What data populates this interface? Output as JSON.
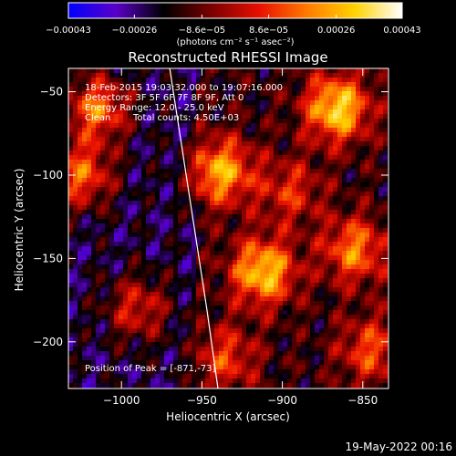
{
  "chart_data": {
    "type": "heatmap",
    "title": "Reconstructed RHESSI Image",
    "xlabel": "Heliocentric X (arcsec)",
    "ylabel": "Heliocentric Y (arcsec)",
    "xlim": [
      -1033,
      -834
    ],
    "ylim": [
      -228,
      -36
    ],
    "x_ticks": [
      -1000,
      -950,
      -900,
      -850
    ],
    "x_tick_labels": [
      "−1000",
      "−950",
      "−900",
      "−850"
    ],
    "y_ticks": [
      -50,
      -100,
      -150,
      -200
    ],
    "y_tick_labels": [
      "−50",
      "−100",
      "−150",
      "−200"
    ],
    "colorbar": {
      "range": [
        -0.00043,
        0.00043
      ],
      "tick_values": [
        -0.00043,
        -0.00026,
        -8.6e-05,
        8.6e-05,
        0.00026,
        0.00043
      ],
      "tick_labels": [
        "−0.00043",
        "−0.00026",
        "−8.6e−05",
        "8.6e−05",
        "0.00026",
        "0.00043"
      ],
      "units": "(photons cm⁻² s⁻¹ asec⁻²)",
      "colors": [
        "#0000ff",
        "#5a00c8",
        "#000000",
        "#7a0000",
        "#e81000",
        "#ff7a00",
        "#ffd200",
        "#ffffff"
      ]
    },
    "annotations": {
      "time": "18-Feb-2015 19:03:32.000 to 19:07:16.000",
      "detectors": "Detectors: 3F 5F 6F 7F 8F 9F, Att 0",
      "energy": "Energy Range: 12.0 - 25.0 keV",
      "method": "Clean",
      "counts": "Total counts: 4.50E+03",
      "peak": "Position of Peak = [-871,-73]"
    },
    "peak_position": [
      -871,
      -73
    ],
    "limb_points": [
      [
        -970,
        -36
      ],
      [
        -963,
        -80
      ],
      [
        -955,
        -130
      ],
      [
        -947,
        -180
      ],
      [
        -940,
        -228
      ]
    ],
    "hotspots": [
      {
        "x": -866,
        "y": -60,
        "value": 1.0
      },
      {
        "x": -912,
        "y": -158,
        "value": 0.95
      },
      {
        "x": -938,
        "y": -98,
        "value": 0.85
      },
      {
        "x": -1015,
        "y": -60,
        "value": 0.8
      },
      {
        "x": -1025,
        "y": -100,
        "value": 0.75
      },
      {
        "x": -855,
        "y": -145,
        "value": 0.7
      },
      {
        "x": -990,
        "y": -180,
        "value": 0.55
      },
      {
        "x": -935,
        "y": -210,
        "value": 0.5
      },
      {
        "x": -845,
        "y": -205,
        "value": 0.55
      },
      {
        "x": -895,
        "y": -110,
        "value": 0.45
      }
    ]
  },
  "footer": {
    "date": "19-May-2022 00:16"
  }
}
